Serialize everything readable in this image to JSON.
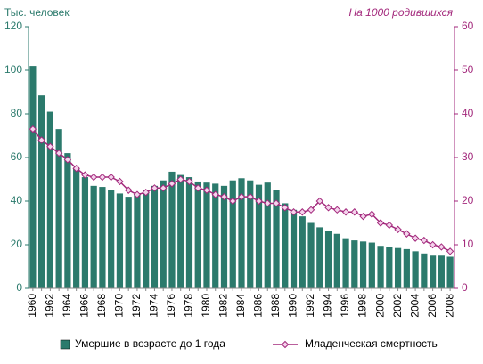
{
  "chart_data": {
    "type": "combo",
    "y_label": "Тыс. человек",
    "y2_label": "На 1000 родившихся",
    "categories": [
      "1960",
      null,
      "1962",
      null,
      "1964",
      null,
      "1966",
      null,
      "1968",
      null,
      "1970",
      null,
      "1972",
      null,
      "1974",
      null,
      "1976",
      null,
      "1978",
      null,
      "1980",
      null,
      "1982",
      null,
      "1984",
      null,
      "1986",
      null,
      "1988",
      null,
      "1990",
      null,
      "1992",
      null,
      "1994",
      null,
      "1996",
      null,
      "1998",
      null,
      "2000",
      null,
      "2002",
      null,
      "2004",
      null,
      "2006",
      null,
      "2008"
    ],
    "series": [
      {
        "name": "Умершие в возрасте до 1 года",
        "type": "bar",
        "color": "#2b7a6c",
        "values": [
          102,
          88.5,
          81,
          73,
          62,
          55,
          51,
          47,
          46.5,
          45,
          43.5,
          42,
          43,
          45,
          47,
          49.5,
          53.5,
          52,
          51,
          49,
          48.5,
          48,
          47,
          49.5,
          50.5,
          49.5,
          47.5,
          48.5,
          45,
          39,
          36,
          33,
          30,
          28,
          26.5,
          25,
          23,
          22,
          21.5,
          21,
          19.5,
          19,
          18.5,
          18,
          17,
          16,
          15,
          15,
          14.5
        ]
      },
      {
        "name": "Младенческая смертность",
        "type": "line",
        "axis": "y2",
        "color": "#a3297c",
        "values": [
          36.5,
          34,
          32.5,
          31,
          29.5,
          27.5,
          26,
          25.5,
          25.5,
          25.5,
          24.5,
          22.5,
          21.5,
          22,
          23,
          23,
          24,
          25,
          24.5,
          23,
          22.5,
          21.5,
          21,
          20,
          21,
          21,
          20,
          19.5,
          19.5,
          18.5,
          17.5,
          17.5,
          18,
          20,
          18.5,
          18,
          17.5,
          17.5,
          16.5,
          17,
          15,
          14.5,
          13.5,
          12.5,
          11.5,
          11,
          10,
          9.5,
          8.5
        ]
      }
    ],
    "ylim": [
      0,
      120
    ],
    "yticks": [
      0,
      20,
      40,
      60,
      80,
      100,
      120
    ],
    "y2lim": [
      0,
      60
    ],
    "y2ticks": [
      0,
      10,
      20,
      30,
      40,
      50,
      60
    ],
    "legend": "bottom"
  }
}
